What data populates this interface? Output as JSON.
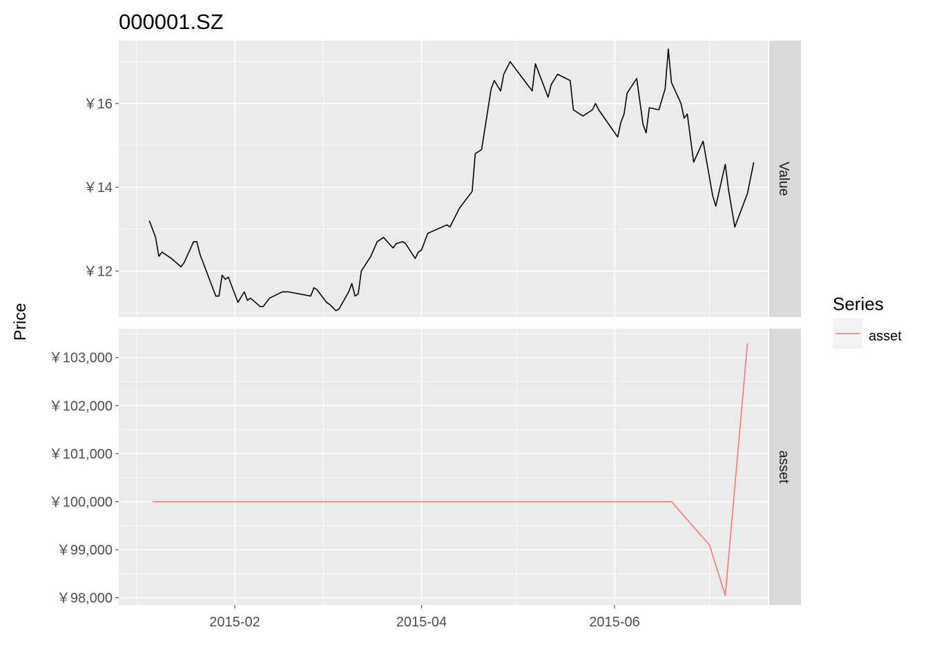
{
  "chart_data": {
    "type": "line",
    "title": "000001.SZ",
    "ylabel": "Price",
    "xlabel": "",
    "x_ticks": [
      "2015-02",
      "2015-04",
      "2015-06"
    ],
    "legend": {
      "title": "Series",
      "placement": "right",
      "entries": [
        {
          "label": "asset",
          "color": "#F8766D"
        }
      ]
    },
    "panels": [
      {
        "strip": "Value",
        "ylim": [
          10.9,
          17.5
        ],
        "y_ticks": [
          12,
          14,
          16
        ],
        "y_tick_labels": [
          "￥12",
          "￥14",
          "￥16"
        ],
        "color": "#000000",
        "series": {
          "x": [
            "2015-01-05",
            "2015-01-07",
            "2015-01-08",
            "2015-01-09",
            "2015-01-12",
            "2015-01-15",
            "2015-01-16",
            "2015-01-19",
            "2015-01-20",
            "2015-01-21",
            "2015-01-26",
            "2015-01-27",
            "2015-01-28",
            "2015-01-29",
            "2015-01-30",
            "2015-02-02",
            "2015-02-04",
            "2015-02-05",
            "2015-02-06",
            "2015-02-09",
            "2015-02-10",
            "2015-02-12",
            "2015-02-16",
            "2015-02-18",
            "2015-02-25",
            "2015-02-26",
            "2015-02-27",
            "2015-03-02",
            "2015-03-03",
            "2015-03-05",
            "2015-03-06",
            "2015-03-09",
            "2015-03-10",
            "2015-03-11",
            "2015-03-12",
            "2015-03-13",
            "2015-03-16",
            "2015-03-18",
            "2015-03-20",
            "2015-03-23",
            "2015-03-24",
            "2015-03-26",
            "2015-03-27",
            "2015-03-30",
            "2015-03-31",
            "2015-04-01",
            "2015-04-03",
            "2015-04-09",
            "2015-04-10",
            "2015-04-13",
            "2015-04-17",
            "2015-04-18",
            "2015-04-20",
            "2015-04-23",
            "2015-04-24",
            "2015-04-26",
            "2015-04-27",
            "2015-04-29",
            "2015-05-06",
            "2015-05-07",
            "2015-05-11",
            "2015-05-12",
            "2015-05-14",
            "2015-05-18",
            "2015-05-19",
            "2015-05-22",
            "2015-05-25",
            "2015-05-26",
            "2015-05-27",
            "2015-06-02",
            "2015-06-03",
            "2015-06-04",
            "2015-06-05",
            "2015-06-08",
            "2015-06-10",
            "2015-06-11",
            "2015-06-12",
            "2015-06-15",
            "2015-06-17",
            "2015-06-18",
            "2015-06-19",
            "2015-06-22",
            "2015-06-23",
            "2015-06-24",
            "2015-06-26",
            "2015-06-29",
            "2015-07-02",
            "2015-07-03",
            "2015-07-06",
            "2015-07-07",
            "2015-07-09",
            "2015-07-13",
            "2015-07-15"
          ],
          "y": [
            13.2,
            12.8,
            12.35,
            12.45,
            12.3,
            12.1,
            12.2,
            12.7,
            12.7,
            12.4,
            11.4,
            11.4,
            11.9,
            11.8,
            11.85,
            11.25,
            11.5,
            11.3,
            11.35,
            11.15,
            11.15,
            11.35,
            11.5,
            11.5,
            11.4,
            11.6,
            11.55,
            11.25,
            11.2,
            11.05,
            11.1,
            11.5,
            11.7,
            11.4,
            11.45,
            12.0,
            12.35,
            12.7,
            12.8,
            12.55,
            12.65,
            12.7,
            12.65,
            12.3,
            12.45,
            12.5,
            12.9,
            13.1,
            13.05,
            13.5,
            13.9,
            14.8,
            14.9,
            16.35,
            16.55,
            16.3,
            16.7,
            17.0,
            16.3,
            16.95,
            16.15,
            16.45,
            16.7,
            16.55,
            15.85,
            15.7,
            15.85,
            16.0,
            15.85,
            15.2,
            15.55,
            15.75,
            16.25,
            16.6,
            15.5,
            15.3,
            15.9,
            15.85,
            16.35,
            17.3,
            16.5,
            16.0,
            15.65,
            15.75,
            14.6,
            15.1,
            13.8,
            13.55,
            14.55,
            13.95,
            13.05,
            13.85,
            14.6
          ]
        }
      },
      {
        "strip": "asset",
        "ylim": [
          97850,
          103600
        ],
        "y_ticks": [
          98000,
          99000,
          100000,
          101000,
          102000,
          103000
        ],
        "y_tick_labels": [
          "￥98,000",
          "￥99,000",
          "￥100,000",
          "￥101,000",
          "￥102,000",
          "￥103,000"
        ],
        "color": "#F8766D",
        "series": {
          "name": "asset",
          "x": [
            "2015-01-06",
            "2015-06-19",
            "2015-06-27",
            "2015-07-01",
            "2015-07-06",
            "2015-07-13"
          ],
          "y": [
            100000,
            100000,
            99400,
            99100,
            98050,
            103300
          ]
        }
      }
    ]
  }
}
